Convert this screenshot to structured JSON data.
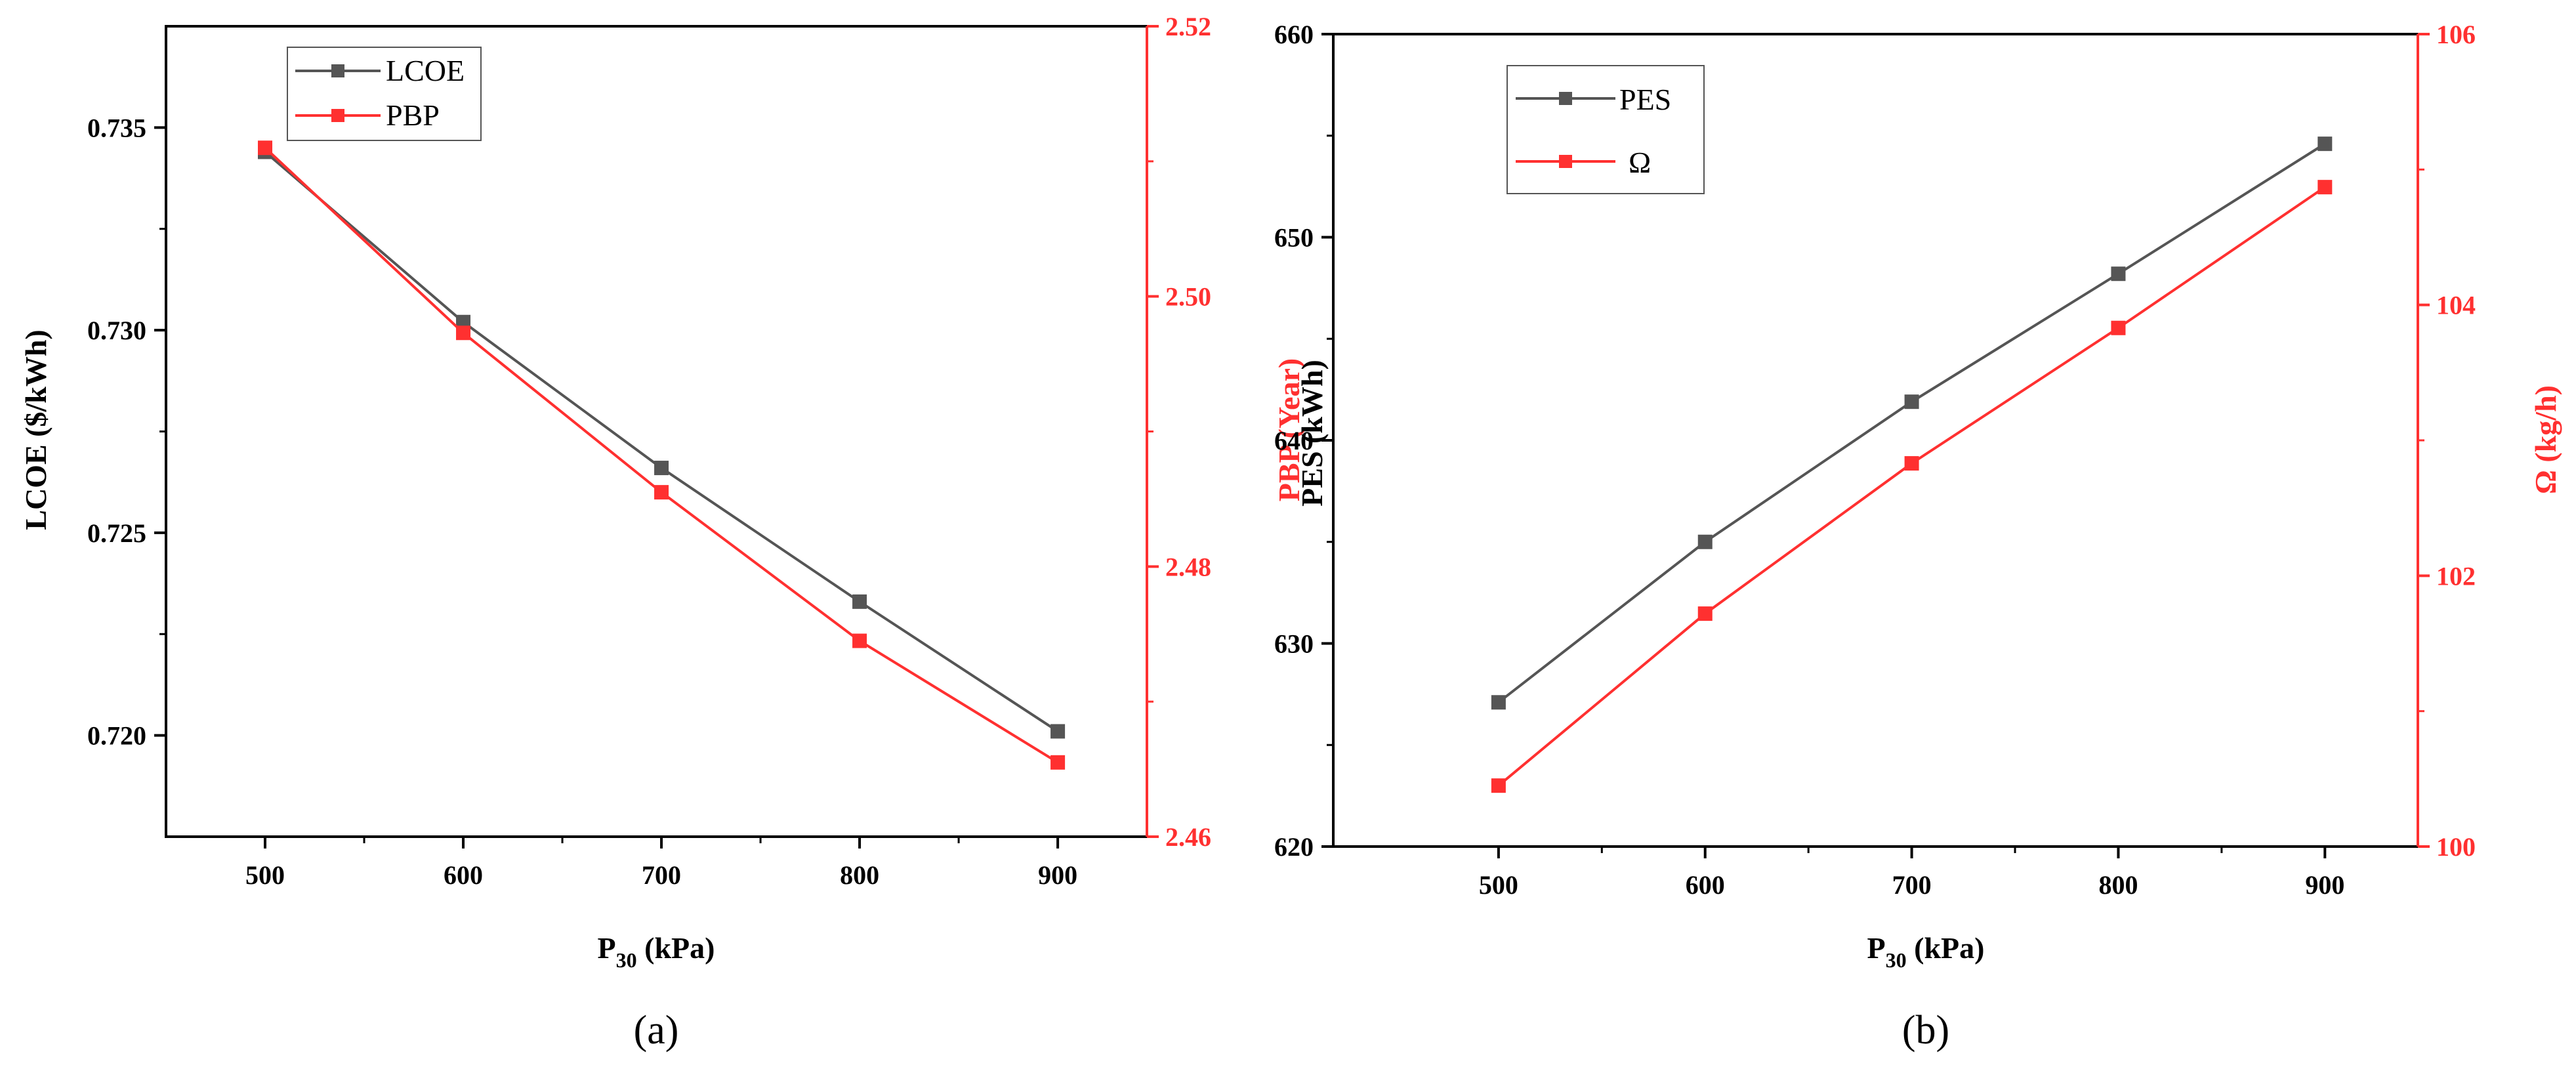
{
  "chart_data": [
    {
      "type": "line",
      "caption": "(a)",
      "x": [
        500,
        600,
        700,
        800,
        900
      ],
      "xticks": [
        "500",
        "600",
        "700",
        "800",
        "900"
      ],
      "xlabel_main": "P",
      "xlabel_sub": "30",
      "xlabel_rest": " (kPa)",
      "xlim": [
        450,
        945
      ],
      "ylabel_left": "LCOE ($/kWh)",
      "ylim_left": [
        0.7175,
        0.7375
      ],
      "yticks_left": [
        "0.720",
        "0.725",
        "0.730",
        "0.735"
      ],
      "ytick_values_left": [
        0.72,
        0.725,
        0.73,
        0.735
      ],
      "ylabel_right": "PBP (Year)",
      "ylim_right": [
        2.46,
        2.52
      ],
      "yticks_right": [
        "2.46",
        "2.48",
        "2.50",
        "2.52"
      ],
      "ytick_values_right": [
        2.46,
        2.48,
        2.5,
        2.52
      ],
      "series": [
        {
          "name": "LCOE",
          "axis": "left",
          "color": "#555555",
          "values": [
            0.7344,
            0.7302,
            0.7266,
            0.7233,
            0.7201
          ]
        },
        {
          "name": "PBP",
          "axis": "right",
          "color": "#ff3030",
          "values": [
            2.511,
            2.4973,
            2.4855,
            2.4745,
            2.4655
          ]
        }
      ],
      "legend": {
        "position": "top-left"
      }
    },
    {
      "type": "line",
      "caption": "(b)",
      "x": [
        500,
        600,
        700,
        800,
        900
      ],
      "xticks": [
        "500",
        "600",
        "700",
        "800",
        "900"
      ],
      "xlabel_main": "P",
      "xlabel_sub": "30",
      "xlabel_rest": " (kPa)",
      "xlim": [
        420,
        945
      ],
      "ylabel_left": "PES (kWh)",
      "ylim_left": [
        620,
        660
      ],
      "yticks_left": [
        "620",
        "630",
        "640",
        "650",
        "660"
      ],
      "ytick_values_left": [
        620,
        630,
        640,
        650,
        660
      ],
      "ylabel_right": "Ω (kg/h)",
      "ylim_right": [
        100,
        106
      ],
      "yticks_right": [
        "100",
        "102",
        "104",
        "106"
      ],
      "ytick_values_right": [
        100,
        102,
        104,
        106
      ],
      "series": [
        {
          "name": "PES",
          "axis": "left",
          "color": "#555555",
          "values": [
            627.1,
            635.0,
            641.9,
            648.2,
            654.6
          ]
        },
        {
          "name": "Ω",
          "axis": "right",
          "color": "#ff3030",
          "values": [
            100.45,
            101.72,
            102.83,
            103.83,
            104.87
          ]
        }
      ],
      "legend": {
        "position": "top-left"
      }
    }
  ]
}
